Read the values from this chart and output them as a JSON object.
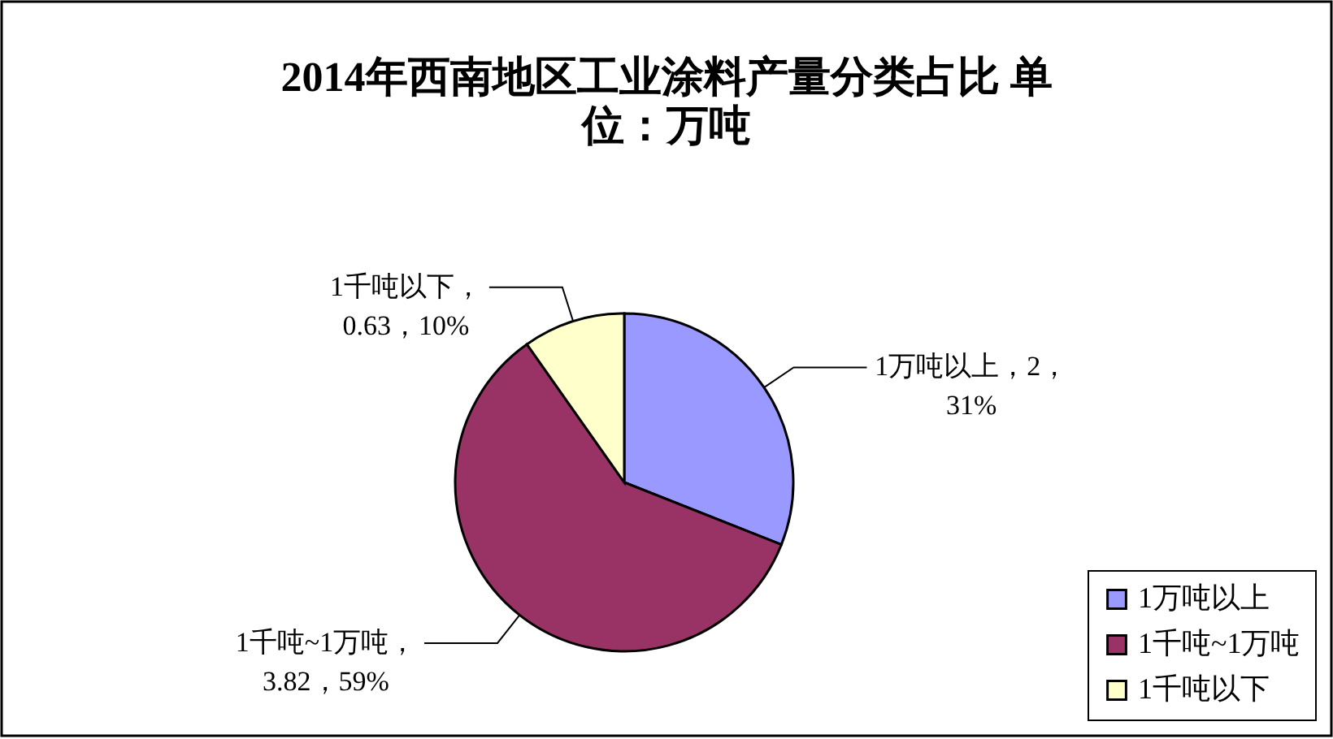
{
  "chart_data": {
    "type": "pie",
    "title": "2014年西南地区工业涂料产量分类占比 单位：万吨",
    "categories": [
      "1万吨以上",
      "1千吨~1万吨",
      "1千吨以下"
    ],
    "values": [
      2,
      3.82,
      0.63
    ],
    "colors": [
      "#9999ff",
      "#993366",
      "#ffffcc"
    ],
    "value_labels": [
      "1万吨以上，2，31%",
      "1千吨~1万吨，3.82，59%",
      "1千吨以下，0.63，10%"
    ],
    "legend": "bottom right"
  }
}
